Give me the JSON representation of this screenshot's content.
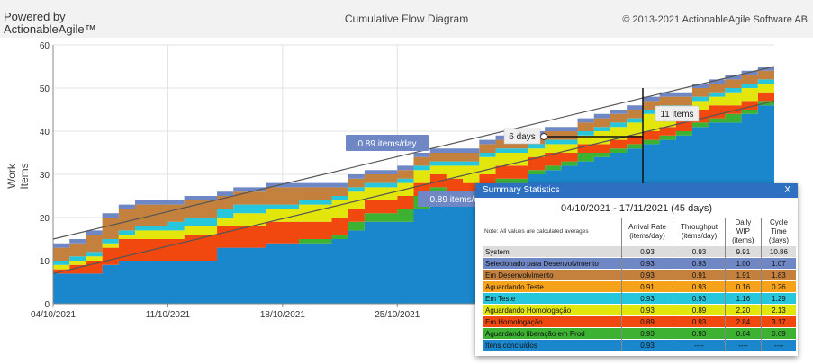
{
  "header": {
    "brand": "Powered by ActionableAgile™",
    "title": "Cumulative Flow Diagram",
    "copyright": "© 2013-2021 ActionableAgile Software AB"
  },
  "chart_data": {
    "type": "area",
    "stacked": true,
    "ylabel": "Work Items",
    "ylim": [
      0,
      60
    ],
    "yticks": [
      0,
      10,
      20,
      30,
      40,
      50,
      60
    ],
    "grid": true,
    "xlim": [
      "04/10/2021",
      "17/11/2021"
    ],
    "xticks": [
      "04/10/2021",
      "11/10/2021",
      "18/10/2021",
      "25/10/2021"
    ],
    "x": [
      "04/10/2021",
      "05/10/2021",
      "06/10/2021",
      "07/10/2021",
      "08/10/2021",
      "09/10/2021",
      "10/10/2021",
      "11/10/2021",
      "12/10/2021",
      "13/10/2021",
      "14/10/2021",
      "15/10/2021",
      "16/10/2021",
      "17/10/2021",
      "18/10/2021",
      "19/10/2021",
      "20/10/2021",
      "21/10/2021",
      "22/10/2021",
      "23/10/2021",
      "24/10/2021",
      "25/10/2021",
      "26/10/2021",
      "27/10/2021",
      "28/10/2021",
      "29/10/2021",
      "30/10/2021",
      "31/10/2021",
      "01/11/2021",
      "02/11/2021",
      "03/11/2021",
      "04/11/2021",
      "05/11/2021",
      "06/11/2021",
      "07/11/2021",
      "08/11/2021",
      "09/11/2021",
      "10/11/2021",
      "11/11/2021",
      "12/11/2021",
      "13/11/2021",
      "14/11/2021",
      "15/11/2021",
      "16/11/2021",
      "17/11/2021"
    ],
    "series": [
      {
        "name": "Itens concluídos",
        "color": "#1a87cc",
        "values": [
          7,
          7,
          7,
          9,
          10,
          10,
          10,
          10,
          10,
          10,
          13,
          13,
          13,
          14,
          14,
          14,
          14,
          15,
          17,
          19,
          19,
          19,
          22,
          24,
          24,
          24,
          26,
          28,
          28,
          30,
          31,
          32,
          33,
          34,
          35,
          36,
          37,
          38,
          39,
          41,
          42,
          42,
          44,
          46,
          47
        ]
      },
      {
        "name": "Aguardando liberação em Prod",
        "color": "#3db232",
        "values": [
          0,
          0,
          0,
          0,
          0,
          0,
          0,
          0,
          0,
          0,
          0,
          0,
          0,
          0,
          0,
          1,
          1,
          1,
          2,
          2,
          2,
          3,
          3,
          3,
          2,
          1,
          1,
          1,
          1,
          1,
          1,
          1,
          2,
          1,
          1,
          1,
          1,
          1,
          1,
          1,
          1,
          2,
          1,
          1,
          1
        ]
      },
      {
        "name": "Em Homologação",
        "color": "#f0480f",
        "values": [
          1,
          2,
          3,
          4,
          5,
          5,
          5,
          5,
          6,
          6,
          5,
          5,
          5,
          5,
          5,
          4,
          4,
          4,
          3,
          3,
          3,
          3,
          3,
          3,
          3,
          3,
          3,
          3,
          3,
          3,
          3,
          2,
          2,
          2,
          2,
          2,
          2,
          2,
          3,
          3,
          3,
          2,
          2,
          2,
          2
        ]
      },
      {
        "name": "Aguardando Homologação",
        "color": "#e3e60a",
        "values": [
          1,
          1,
          1,
          1,
          1,
          2,
          2,
          2,
          2,
          2,
          2,
          3,
          3,
          3,
          3,
          4,
          4,
          4,
          4,
          3,
          3,
          3,
          3,
          2,
          3,
          4,
          4,
          3,
          3,
          2,
          2,
          2,
          2,
          3,
          3,
          3,
          4,
          4,
          2,
          2,
          2,
          3,
          3,
          2,
          2
        ]
      },
      {
        "name": "Em Teste",
        "color": "#26c6dc",
        "values": [
          1,
          1,
          1,
          1,
          1,
          1,
          1,
          2,
          2,
          2,
          2,
          2,
          2,
          1,
          1,
          1,
          1,
          1,
          1,
          1,
          1,
          1,
          1,
          1,
          1,
          1,
          1,
          1,
          1,
          1,
          1,
          1,
          1,
          1,
          1,
          1,
          1,
          1,
          1,
          1,
          1,
          1,
          1,
          1,
          1
        ]
      },
      {
        "name": "Aguardando Teste",
        "color": "#f7a21b",
        "values": [
          0,
          0,
          0,
          0,
          0,
          0,
          0,
          0,
          0,
          0,
          0,
          0,
          0,
          0,
          0,
          0,
          0,
          0,
          0,
          0,
          0,
          0,
          0,
          0,
          0,
          0,
          0,
          0,
          0,
          0,
          0,
          0,
          0,
          0,
          0,
          0,
          0,
          0,
          0,
          0,
          0,
          0,
          0,
          0,
          0
        ]
      },
      {
        "name": "Em Desenvolvimento",
        "color": "#c4813e",
        "values": [
          3,
          3,
          4,
          5,
          5,
          5,
          5,
          4,
          4,
          4,
          3,
          3,
          3,
          4,
          4,
          3,
          3,
          2,
          2,
          2,
          2,
          2,
          2,
          2,
          2,
          2,
          2,
          2,
          2,
          2,
          2,
          2,
          2,
          2,
          2,
          2,
          2,
          2,
          2,
          2,
          2,
          2,
          2,
          2,
          2
        ]
      },
      {
        "name": "Selecionado para Desenvolvimento",
        "color": "#6f88c5",
        "values": [
          1,
          1,
          1,
          1,
          1,
          1,
          1,
          1,
          1,
          1,
          1,
          1,
          1,
          1,
          1,
          1,
          1,
          1,
          1,
          1,
          1,
          1,
          1,
          1,
          1,
          1,
          1,
          1,
          1,
          1,
          1,
          1,
          1,
          1,
          1,
          1,
          1,
          1,
          1,
          1,
          1,
          1,
          1,
          1,
          1
        ]
      }
    ],
    "trendlines": [
      {
        "label": "0.89 items/day",
        "from": [
          0,
          15
        ],
        "to": [
          44,
          55
        ]
      },
      {
        "label": "0.89 items/day",
        "from": [
          0,
          7
        ],
        "to": [
          44,
          47
        ]
      }
    ],
    "annotations": [
      {
        "label": "6 days"
      },
      {
        "label": "11 items"
      }
    ]
  },
  "summary": {
    "title": "Summary Statistics",
    "close": "X",
    "range": "04/10/2021 - 17/11/2021 (45 days)",
    "note": "Note: All values are calculated averages",
    "columns": [
      "Arrival Rate (items/day)",
      "Throughput (items/day)",
      "Daily WIP (items)",
      "Cycle Time (days)"
    ],
    "rows": [
      {
        "label": "System",
        "values": [
          "0.93",
          "0.93",
          "9.91",
          "10.86"
        ],
        "color": "#dcdcdc"
      },
      {
        "label": "Selecionado para Desenvolvimento",
        "values": [
          "0.93",
          "0.93",
          "1.00",
          "1.07"
        ],
        "color": "#6f88c5"
      },
      {
        "label": "Em Desenvolvimento",
        "values": [
          "0.93",
          "0.91",
          "1.91",
          "1.83"
        ],
        "color": "#c4813e"
      },
      {
        "label": "Aguardando Teste",
        "values": [
          "0.91",
          "0.93",
          "0.16",
          "0.26"
        ],
        "color": "#f7a21b"
      },
      {
        "label": "Em Teste",
        "values": [
          "0.93",
          "0.93",
          "1.16",
          "1.29"
        ],
        "color": "#26c6dc"
      },
      {
        "label": "Aguardando Homologação",
        "values": [
          "0.93",
          "0.89",
          "2.20",
          "2.13"
        ],
        "color": "#e3e60a"
      },
      {
        "label": "Em Homologação",
        "values": [
          "0.89",
          "0.93",
          "2.84",
          "3.17"
        ],
        "color": "#f0480f"
      },
      {
        "label": "Aguardando liberação em Prod",
        "values": [
          "0.93",
          "0.93",
          "0.64",
          "0.69"
        ],
        "color": "#3db232"
      },
      {
        "label": "Itens concluídos",
        "values": [
          "0.93",
          "----",
          "----",
          "----"
        ],
        "color": "#1a87cc"
      }
    ]
  }
}
